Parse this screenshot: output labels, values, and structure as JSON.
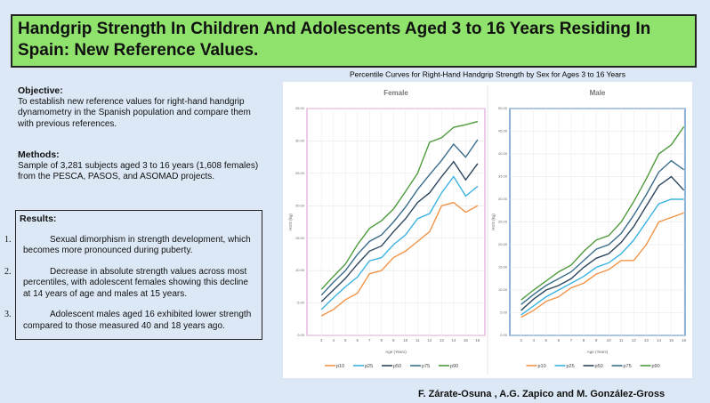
{
  "header": {
    "title": "Handgrip Strength In Children And Adolescents Aged 3 to 16 Years Residing In Spain: New Reference Values."
  },
  "objective": {
    "heading": "Objective:",
    "text": "To establish new reference values for right-hand handgrip dynamometry in the Spanish population and compare them with previous references."
  },
  "methods": {
    "heading": "Methods:",
    "text": "Sample of 3,281 subjects aged 3 to 16 years (1,608 females) from the PESCA, PASOS, and ASOMAD projects."
  },
  "results": {
    "heading": "Results:",
    "items": [
      {
        "number": "1.",
        "text": "Sexual dimorphism in strength development, which becomes more pronounced during puberty."
      },
      {
        "number": "2.",
        "text": "Decrease in absolute strength values across most percentiles, with adolescent females showing this decline at 14 years of age and males at 15 years."
      },
      {
        "number": "3.",
        "text": "Adolescent males aged 16 exhibited lower strength compared to those measured 40 and 18 years ago."
      }
    ]
  },
  "figure_title": "Percentile Curves for Right-Hand Handgrip Strength by Sex for Ages 3 to 16 Years",
  "authors": "F. Zárate-Osuna , A.G. Zapico and M. González-Gross",
  "chart_data": [
    {
      "type": "line",
      "title": "Female",
      "x_label": "Age (Years)",
      "y_label": "HGS (kg)",
      "x": [
        3,
        4,
        5,
        6,
        7,
        8,
        9,
        10,
        11,
        12,
        13,
        14,
        15,
        16
      ],
      "xlim": [
        1.8,
        16.6
      ],
      "xticks": [
        3,
        4,
        5,
        6,
        7,
        8,
        9,
        10,
        11,
        12,
        13,
        14,
        15,
        16
      ],
      "ylim": [
        0,
        35
      ],
      "yticks": [
        {
          "value": 0,
          "label": "0.00"
        },
        {
          "value": 5,
          "label": "5.00"
        },
        {
          "value": 10,
          "label": "10.00"
        },
        {
          "value": 15,
          "label": "15.00"
        },
        {
          "value": 20,
          "label": "20.00"
        },
        {
          "value": 25,
          "label": "25.00"
        },
        {
          "value": 30,
          "label": "30.00"
        },
        {
          "value": 35,
          "label": "35.00"
        }
      ],
      "grid": true,
      "legend": "bottom",
      "border_color": "#e9b9e3",
      "series": [
        {
          "name": "p10",
          "color": "#f29447",
          "values": [
            3,
            4,
            5.5,
            6.5,
            9.5,
            10,
            12,
            13,
            14.5,
            16,
            20,
            20.5,
            19,
            20
          ]
        },
        {
          "name": "p25",
          "color": "#3cb3e0",
          "values": [
            4,
            5.8,
            7.5,
            9,
            11.5,
            12,
            14,
            15.5,
            18,
            18.8,
            22,
            24.5,
            21.5,
            23
          ]
        },
        {
          "name": "p50",
          "color": "#2b465e",
          "values": [
            5.2,
            7,
            8.8,
            11,
            13,
            13.8,
            16,
            18,
            20.5,
            22,
            24.5,
            26.8,
            24,
            26.5
          ]
        },
        {
          "name": "p75",
          "color": "#3a6d8c",
          "values": [
            6.2,
            8.2,
            10,
            12.5,
            14.5,
            15.5,
            17.5,
            19.8,
            22.5,
            24.8,
            27,
            29.5,
            27.5,
            30.2
          ]
        },
        {
          "name": "p90",
          "color": "#4e9b3d",
          "values": [
            7.1,
            9.1,
            11,
            14,
            16.5,
            17.7,
            19.5,
            22.2,
            25,
            29.8,
            30.5,
            32.1,
            32.5,
            33
          ]
        }
      ]
    },
    {
      "type": "line",
      "title": "Male",
      "x_label": "Age (Years)",
      "y_label": "HGS (kg)",
      "x": [
        3,
        4,
        5,
        6,
        7,
        8,
        9,
        10,
        11,
        12,
        13,
        14,
        15,
        16
      ],
      "xlim": [
        2.1,
        16.1
      ],
      "xticks": [
        3,
        4,
        5,
        6,
        7,
        8,
        9,
        10,
        11,
        12,
        13,
        14,
        15,
        16
      ],
      "ylim": [
        0,
        50
      ],
      "yticks": [
        {
          "value": 0,
          "label": "0.00"
        },
        {
          "value": 5,
          "label": "5.00"
        },
        {
          "value": 10,
          "label": "10.00"
        },
        {
          "value": 15,
          "label": "15.00"
        },
        {
          "value": 20,
          "label": "20.00"
        },
        {
          "value": 25,
          "label": "25.00"
        },
        {
          "value": 30,
          "label": "30.00"
        },
        {
          "value": 35,
          "label": "35.00"
        },
        {
          "value": 40,
          "label": "40.00"
        },
        {
          "value": 45,
          "label": "45.00"
        },
        {
          "value": 50,
          "label": "50.00"
        }
      ],
      "grid": true,
      "legend": "bottom",
      "border_color": "#6a9ccb",
      "series": [
        {
          "name": "p10",
          "color": "#f29447",
          "values": [
            4,
            5.5,
            7.5,
            8.5,
            10.5,
            11.5,
            13.5,
            14.5,
            16.5,
            16.5,
            20,
            25,
            26,
            27
          ]
        },
        {
          "name": "p25",
          "color": "#3cb3e0",
          "values": [
            4.5,
            6.5,
            8.5,
            10,
            11.5,
            13,
            15,
            16,
            18,
            21,
            25,
            29,
            30,
            30
          ]
        },
        {
          "name": "p50",
          "color": "#2b465e",
          "values": [
            5.5,
            8,
            10,
            11,
            12.5,
            15,
            17,
            18,
            20.5,
            24,
            28.5,
            33,
            35,
            32
          ]
        },
        {
          "name": "p75",
          "color": "#3a6d8c",
          "values": [
            6.8,
            9,
            11,
            12.5,
            14,
            16.5,
            19,
            20,
            22.5,
            26.5,
            31,
            36,
            38.5,
            36.5
          ]
        },
        {
          "name": "p90",
          "color": "#4e9b3d",
          "values": [
            7.8,
            10,
            12,
            14,
            15.5,
            18.5,
            21,
            22,
            25,
            29.5,
            34.5,
            40,
            42,
            46
          ]
        }
      ]
    }
  ]
}
